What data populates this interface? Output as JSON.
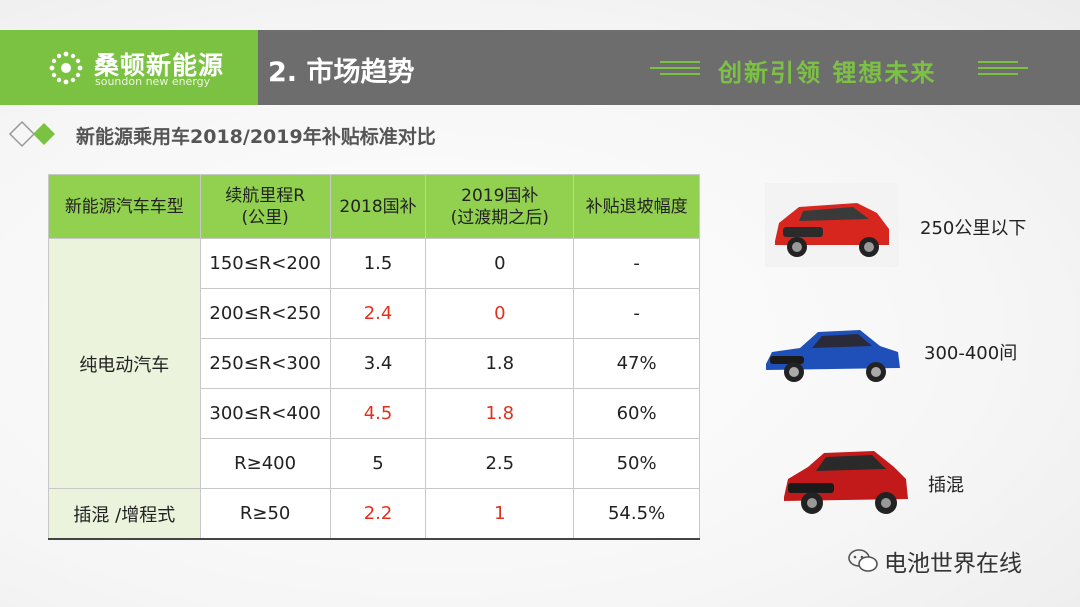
{
  "header": {
    "logo_cn": "桑顿新能源",
    "logo_en": "soundon new energy",
    "section_title": "2. 市场趋势",
    "slogan": "创新引领  锂想未来"
  },
  "subtitle": "新能源乘用车2018/2019年补贴标准对比",
  "table": {
    "headers": [
      "新能源汽车车型",
      "续航里程R\n(公里)",
      "2018国补",
      "2019国补\n(过渡期之后)",
      "补贴退坡幅度"
    ],
    "ev_type": "纯电动汽车",
    "ev_rows": [
      {
        "range": "150≤R<200",
        "y2018": "1.5",
        "y2019": "0",
        "decline": "-"
      },
      {
        "range": "200≤R<250",
        "y2018": "2.4",
        "y2019": "0",
        "decline": "-"
      },
      {
        "range": "250≤R<300",
        "y2018": "3.4",
        "y2019": "1.8",
        "decline": "47%"
      },
      {
        "range": "300≤R<400",
        "y2018": "4.5",
        "y2019": "1.8",
        "decline": "60%"
      },
      {
        "range": "R≥400",
        "y2018": "5",
        "y2019": "2.5",
        "decline": "50%"
      }
    ],
    "phev_type": "插混 /增程式",
    "phev_row": {
      "range": "R≥50",
      "y2018": "2.2",
      "y2019": "1",
      "decline": "54.5%"
    }
  },
  "cars": [
    {
      "label": "250公里以下",
      "color": "#d7261e"
    },
    {
      "label": "300-400间",
      "color": "#1f4fb8"
    },
    {
      "label": "插混",
      "color": "#c21a1a"
    }
  ],
  "watermark": "电池世界在线",
  "colors": {
    "accent_green": "#7cc242",
    "header_gray": "#6d6d6d",
    "table_header": "#92d050",
    "highlight_red": "#e0311f"
  }
}
